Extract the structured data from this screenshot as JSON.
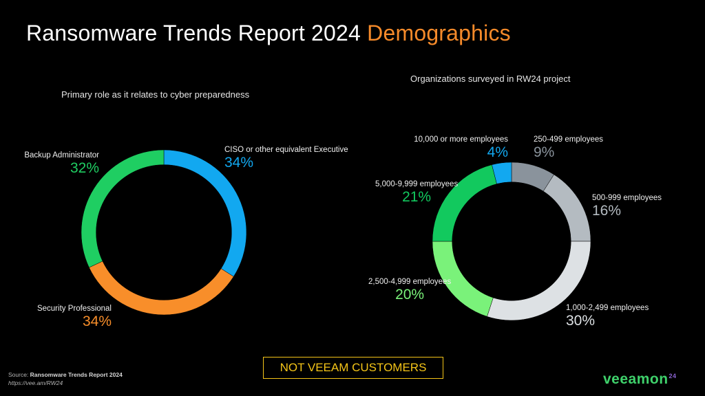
{
  "slide": {
    "title_main": "Ransomware Trends Report 2024",
    "title_accent": "Demographics",
    "notice": "NOT VEEAM CUSTOMERS",
    "source_prefix": "Source:",
    "source_title": "Ransomware Trends Report 2024",
    "source_url": "https://vee.am/RW24",
    "logo_text": "veeam",
    "logo_on": "on",
    "logo_sup": "24",
    "accent_color": "#f58a2a",
    "notice_color": "#f5c518"
  },
  "chart_data": [
    {
      "type": "pie",
      "title": "Primary role as it relates to cyber preparedness",
      "hole": 0.82,
      "slices": [
        {
          "label": "CISO or other equivalent Executive",
          "value": 34,
          "display": "34%",
          "color": "#12a8f0"
        },
        {
          "label": "Security Professional",
          "value": 34,
          "display": "34%",
          "color": "#f88e2a"
        },
        {
          "label": "Backup Administrator",
          "value": 32,
          "display": "32%",
          "color": "#1fce62"
        }
      ]
    },
    {
      "type": "pie",
      "title": "Organizations surveyed in RW24 project",
      "hole": 0.75,
      "slices": [
        {
          "label": "250-499 employees",
          "value": 9,
          "display": "9%",
          "color": "#8a939c"
        },
        {
          "label": "500-999 employees",
          "value": 16,
          "display": "16%",
          "color": "#b4bbc1"
        },
        {
          "label": "1,000-2,499 employees",
          "value": 30,
          "display": "30%",
          "color": "#dde1e4"
        },
        {
          "label": "2,500-4,999 employees",
          "value": 20,
          "display": "20%",
          "color": "#7af27a"
        },
        {
          "label": "5,000-9,999 employees",
          "value": 21,
          "display": "21%",
          "color": "#12c95e"
        },
        {
          "label": "10,000 or more employees",
          "value": 4,
          "display": "4%",
          "color": "#12a8f0"
        }
      ]
    }
  ]
}
